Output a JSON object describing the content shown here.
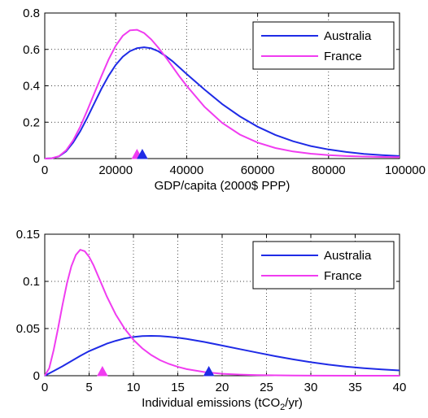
{
  "colors": {
    "australia": "#1f2be6",
    "france": "#f03cf0"
  },
  "chart_data": [
    {
      "type": "line",
      "xlabel": "GDP/capita (2000$ PPP)",
      "xlabel_subscript": "",
      "xlabel_suffix": "",
      "xlim": [
        0,
        100000
      ],
      "ylim": [
        0,
        0.8
      ],
      "xticks": [
        0,
        20000,
        40000,
        60000,
        80000,
        100000
      ],
      "xtick_labels": [
        "0",
        "20000",
        "40000",
        "60000",
        "80000",
        "100000"
      ],
      "yticks": [
        0,
        0.2,
        0.4,
        0.6,
        0.8
      ],
      "ytick_labels": [
        "0",
        "0.2",
        "0.4",
        "0.6",
        "0.8"
      ],
      "grid": true,
      "legend": "top-right",
      "series": [
        {
          "name": "Australia",
          "color": "#1f2be6",
          "x": [
            0,
            2000,
            4000,
            6000,
            8000,
            10000,
            12000,
            14000,
            16000,
            18000,
            20000,
            22000,
            24000,
            26000,
            28000,
            30000,
            32000,
            34000,
            36000,
            38000,
            40000,
            45000,
            50000,
            55000,
            60000,
            65000,
            70000,
            75000,
            80000,
            85000,
            90000,
            95000,
            100000
          ],
          "y": [
            0,
            0.002,
            0.012,
            0.04,
            0.088,
            0.15,
            0.225,
            0.305,
            0.385,
            0.455,
            0.515,
            0.56,
            0.59,
            0.607,
            0.612,
            0.606,
            0.59,
            0.565,
            0.535,
            0.5,
            0.465,
            0.38,
            0.3,
            0.232,
            0.175,
            0.13,
            0.095,
            0.069,
            0.05,
            0.036,
            0.026,
            0.019,
            0.014
          ],
          "marker": {
            "x": 27500,
            "y": 0
          }
        },
        {
          "name": "France",
          "color": "#f03cf0",
          "x": [
            0,
            2000,
            4000,
            6000,
            8000,
            10000,
            12000,
            14000,
            16000,
            18000,
            20000,
            22000,
            24000,
            26000,
            28000,
            30000,
            32000,
            34000,
            36000,
            38000,
            40000,
            45000,
            50000,
            55000,
            60000,
            65000,
            70000,
            75000,
            80000,
            85000,
            90000,
            95000,
            100000
          ],
          "y": [
            0,
            0.002,
            0.013,
            0.045,
            0.1,
            0.175,
            0.265,
            0.36,
            0.455,
            0.545,
            0.62,
            0.675,
            0.705,
            0.708,
            0.69,
            0.655,
            0.61,
            0.56,
            0.505,
            0.45,
            0.4,
            0.285,
            0.196,
            0.132,
            0.088,
            0.058,
            0.039,
            0.027,
            0.019,
            0.014,
            0.011,
            0.009,
            0.008
          ],
          "marker": {
            "x": 26000,
            "y": 0
          }
        }
      ]
    },
    {
      "type": "line",
      "xlabel": "Individual emissions (tCO",
      "xlabel_subscript": "2",
      "xlabel_suffix": "/yr)",
      "xlim": [
        0,
        40
      ],
      "ylim": [
        0,
        0.15
      ],
      "xticks": [
        0,
        5,
        10,
        15,
        20,
        25,
        30,
        35,
        40
      ],
      "xtick_labels": [
        "0",
        "5",
        "10",
        "15",
        "20",
        "25",
        "30",
        "35",
        "40"
      ],
      "yticks": [
        0,
        0.05,
        0.1,
        0.15
      ],
      "ytick_labels": [
        "0",
        "0.05",
        "0.1",
        "0.15"
      ],
      "grid": true,
      "legend": "top-right",
      "series": [
        {
          "name": "Australia",
          "color": "#1f2be6",
          "x": [
            0,
            1,
            2,
            3,
            4,
            5,
            6,
            7,
            8,
            9,
            10,
            11,
            12,
            13,
            14,
            15,
            16,
            18,
            20,
            22,
            24,
            26,
            28,
            30,
            32,
            34,
            36,
            38,
            40
          ],
          "y": [
            0,
            0.005,
            0.01,
            0.0155,
            0.021,
            0.026,
            0.03,
            0.034,
            0.037,
            0.0395,
            0.041,
            0.042,
            0.0422,
            0.042,
            0.0413,
            0.0403,
            0.039,
            0.0358,
            0.032,
            0.0282,
            0.0244,
            0.0207,
            0.0173,
            0.0143,
            0.0117,
            0.0096,
            0.0079,
            0.0066,
            0.0056
          ],
          "marker": {
            "x": 18.5,
            "y": 0
          }
        },
        {
          "name": "France",
          "color": "#f03cf0",
          "x": [
            0,
            0.5,
            1,
            1.5,
            2,
            2.5,
            3,
            3.5,
            4,
            4.5,
            5,
            5.5,
            6,
            6.5,
            7,
            8,
            9,
            10,
            11,
            12,
            13,
            14,
            15,
            16,
            18,
            20,
            22,
            24,
            26,
            28,
            30,
            35,
            40
          ],
          "y": [
            0,
            0.008,
            0.027,
            0.05,
            0.075,
            0.098,
            0.116,
            0.128,
            0.1335,
            0.132,
            0.126,
            0.117,
            0.106,
            0.095,
            0.084,
            0.065,
            0.05,
            0.038,
            0.029,
            0.022,
            0.0165,
            0.0125,
            0.0094,
            0.007,
            0.0039,
            0.0021,
            0.0012,
            0.0007,
            0.0004,
            0.0002,
            0.0001,
            0,
            0
          ],
          "marker": {
            "x": 6.5,
            "y": 0
          }
        }
      ]
    }
  ]
}
